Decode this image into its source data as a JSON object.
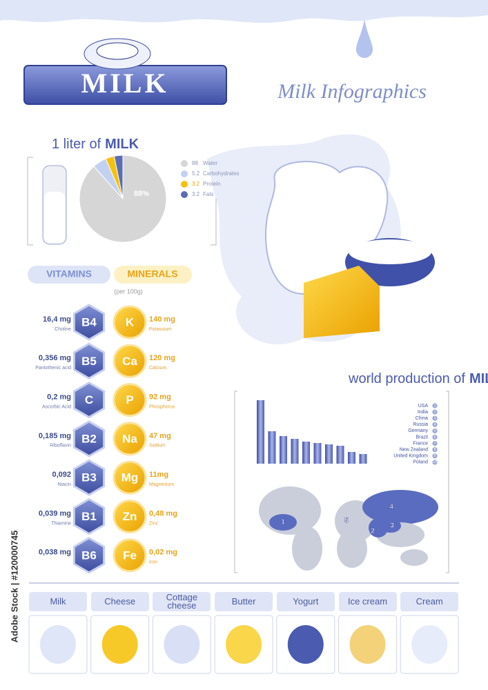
{
  "header": {
    "logo": "MILK",
    "subtitle": "Milk Infographics"
  },
  "chart_data": [
    {
      "type": "pie",
      "title": "1 liter of",
      "title_emphasis": "MILK",
      "categories": [
        "Water",
        "Carbohydrates",
        "Protein",
        "Fats"
      ],
      "values": [
        88,
        5.2,
        3.2,
        3.2
      ],
      "colors": [
        "#d6d6d6",
        "#c3d1f1",
        "#f4c20d",
        "#5a6db5"
      ],
      "slice_label": "88%"
    },
    {
      "type": "bar",
      "title": "world production of",
      "title_emphasis": "MILK",
      "categories": [
        "USA",
        "India",
        "China",
        "Russia",
        "Germany",
        "Brazil",
        "France",
        "New Zealand",
        "United Kingdom",
        "Poland"
      ],
      "ranks": [
        1,
        2,
        3,
        4,
        5,
        6,
        7,
        8,
        9,
        10
      ],
      "values": [
        92,
        47,
        40,
        36,
        32,
        30,
        28,
        26,
        17,
        14
      ],
      "ylim": [
        0,
        100
      ],
      "color": "#5264b4"
    }
  ],
  "map": {
    "markers": [
      1,
      2,
      3,
      4,
      5
    ]
  },
  "nutrients": {
    "vitamins_label": "VITAMINS",
    "minerals_label": "MINERALS",
    "note": "(per 100g)",
    "rows": [
      {
        "vitamin_amount": "16,4 mg",
        "vitamin_name": "Choline",
        "vitamin": "B4",
        "mineral": "K",
        "mineral_amount": "140 mg",
        "mineral_name": "Potassium"
      },
      {
        "vitamin_amount": "0,356 mg",
        "vitamin_name": "Pantothenic acid",
        "vitamin": "B5",
        "mineral": "Ca",
        "mineral_amount": "120 mg",
        "mineral_name": "Calcium"
      },
      {
        "vitamin_amount": "0,2 mg",
        "vitamin_name": "Ascorbic Acid",
        "vitamin": "C",
        "mineral": "P",
        "mineral_amount": "92 mg",
        "mineral_name": "Phosphorus"
      },
      {
        "vitamin_amount": "0,185 mg",
        "vitamin_name": "Riboflavin",
        "vitamin": "B2",
        "mineral": "Na",
        "mineral_amount": "47 mg",
        "mineral_name": "Sodium"
      },
      {
        "vitamin_amount": "0,092",
        "vitamin_name": "Niacin",
        "vitamin": "B3",
        "mineral": "Mg",
        "mineral_amount": "11mg",
        "mineral_name": "Magnesium"
      },
      {
        "vitamin_amount": "0,039 mg",
        "vitamin_name": "Thiamine",
        "vitamin": "B1",
        "mineral": "Zn",
        "mineral_amount": "0,48 mg",
        "mineral_name": "Zinc"
      },
      {
        "vitamin_amount": "0,038 mg",
        "vitamin_name": "",
        "vitamin": "B6",
        "mineral": "Fe",
        "mineral_amount": "0,02 mg",
        "mineral_name": "Iron"
      }
    ]
  },
  "products": [
    "Milk",
    "Cheese",
    "Cottage cheese",
    "Butter",
    "Yogurt",
    "Ice cream",
    "Cream"
  ],
  "watermark": "Adobe Stock | #120000745"
}
